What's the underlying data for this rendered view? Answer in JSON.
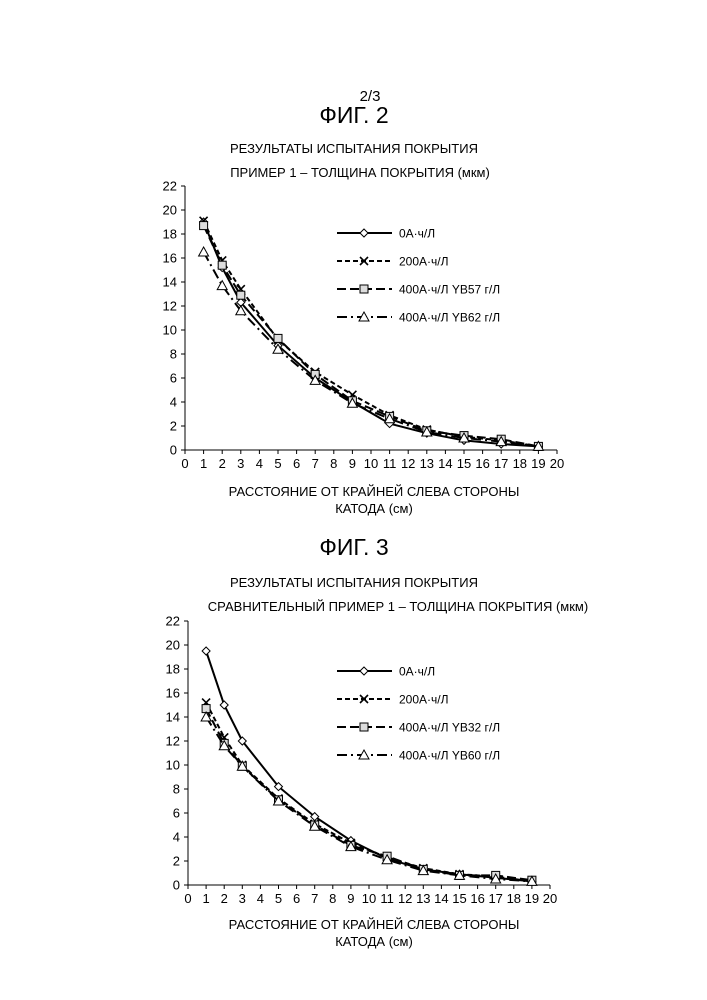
{
  "page_number": "2/3",
  "chart_data": [
    {
      "type": "line",
      "figure_label": "ФИГ. 2",
      "title": "РЕЗУЛЬТАТЫ ИСПЫТАНИЯ ПОКРЫТИЯ",
      "subtitle": "ПРИМЕР 1 – ТОЛЩИНА ПОКРЫТИЯ (мкм)",
      "xlabel_line1": "РАССТОЯНИЕ ОТ КРАЙНЕЙ СЛЕВА СТОРОНЫ",
      "xlabel_line2": "КАТОДА (см)",
      "xlim": [
        0,
        20
      ],
      "ylim": [
        0,
        22
      ],
      "x_ticks": [
        0,
        1,
        2,
        3,
        4,
        5,
        6,
        7,
        8,
        9,
        10,
        11,
        12,
        13,
        14,
        15,
        16,
        17,
        18,
        19,
        20
      ],
      "y_ticks": [
        0,
        2,
        4,
        6,
        8,
        10,
        12,
        14,
        16,
        18,
        20,
        22
      ],
      "grid": false,
      "legend_position": "top-right",
      "x": [
        1,
        2,
        3,
        5,
        7,
        9,
        11,
        13,
        15,
        17,
        19
      ],
      "series": [
        {
          "name": "0А·ч/Л",
          "marker": "diamond",
          "dash": "solid",
          "values": [
            19.0,
            15.2,
            12.3,
            8.7,
            6.0,
            4.0,
            2.2,
            1.4,
            0.8,
            0.5,
            0.3
          ]
        },
        {
          "name": "200А·ч/Л",
          "marker": "x",
          "dash": "short",
          "values": [
            19.1,
            15.8,
            13.4,
            9.2,
            6.5,
            4.6,
            2.9,
            1.7,
            1.1,
            0.8,
            0.3
          ]
        },
        {
          "name": "400А·ч/Л YB57 г/Л",
          "marker": "square",
          "dash": "long",
          "values": [
            18.7,
            15.4,
            12.9,
            9.3,
            6.3,
            4.1,
            2.8,
            1.6,
            1.2,
            0.9,
            0.3
          ]
        },
        {
          "name": "400А·ч/Л YB62 г/Л",
          "marker": "triangle",
          "dash": "dashdot",
          "values": [
            16.5,
            13.7,
            11.6,
            8.4,
            5.8,
            3.9,
            2.6,
            1.5,
            1.0,
            0.7,
            0.3
          ]
        }
      ]
    },
    {
      "type": "line",
      "figure_label": "ФИГ. 3",
      "title": "РЕЗУЛЬТАТЫ ИСПЫТАНИЯ ПОКРЫТИЯ",
      "subtitle": "СРАВНИТЕЛЬНЫЙ ПРИМЕР 1 – ТОЛЩИНА ПОКРЫТИЯ (мкм)",
      "xlabel_line1": "РАССТОЯНИЕ ОТ КРАЙНЕЙ СЛЕВА СТОРОНЫ",
      "xlabel_line2": "КАТОДА (см)",
      "xlim": [
        0,
        20
      ],
      "ylim": [
        0,
        22
      ],
      "x_ticks": [
        0,
        1,
        2,
        3,
        4,
        5,
        6,
        7,
        8,
        9,
        10,
        11,
        12,
        13,
        14,
        15,
        16,
        17,
        18,
        19,
        20
      ],
      "y_ticks": [
        0,
        2,
        4,
        6,
        8,
        10,
        12,
        14,
        16,
        18,
        20,
        22
      ],
      "grid": false,
      "legend_position": "top-right",
      "x": [
        1,
        2,
        3,
        5,
        7,
        9,
        11,
        13,
        15,
        17,
        19
      ],
      "series": [
        {
          "name": "0А·ч/Л",
          "marker": "diamond",
          "dash": "solid",
          "values": [
            19.5,
            15.0,
            12.0,
            8.2,
            5.7,
            3.7,
            2.2,
            1.3,
            0.9,
            0.6,
            0.3
          ]
        },
        {
          "name": "200А·ч/Л",
          "marker": "x",
          "dash": "short",
          "values": [
            15.2,
            12.3,
            10.0,
            7.2,
            5.1,
            3.5,
            2.3,
            1.4,
            0.9,
            0.7,
            0.3
          ]
        },
        {
          "name": "400А·ч/Л YB32 г/Л",
          "marker": "square",
          "dash": "long",
          "values": [
            14.7,
            11.8,
            9.9,
            7.1,
            5.0,
            3.3,
            2.4,
            1.3,
            0.8,
            0.8,
            0.4
          ]
        },
        {
          "name": "400А·ч/Л YB60 г/Л",
          "marker": "triangle",
          "dash": "dashdot",
          "values": [
            14.0,
            11.6,
            9.9,
            7.0,
            4.9,
            3.2,
            2.1,
            1.2,
            0.8,
            0.5,
            0.3
          ]
        }
      ]
    }
  ]
}
